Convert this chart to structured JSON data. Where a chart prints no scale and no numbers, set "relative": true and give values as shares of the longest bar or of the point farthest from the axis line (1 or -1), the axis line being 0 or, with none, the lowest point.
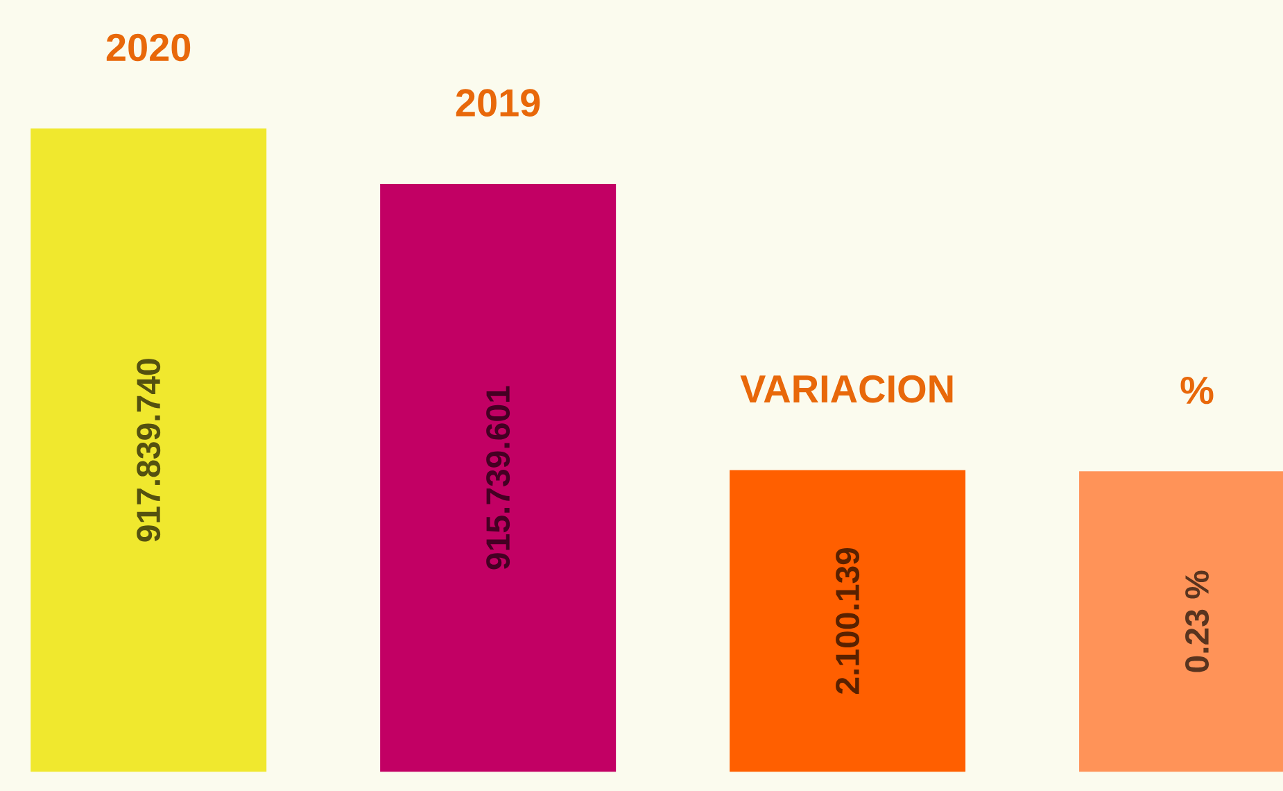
{
  "chart_data": {
    "type": "bar",
    "relative": true,
    "categories": [
      "2020",
      "2019",
      "VARIACION",
      "%"
    ],
    "values": [
      1,
      0.914,
      0.469,
      0.467
    ],
    "colors": [
      "#f0e82e",
      "#c20064",
      "#ff5f00",
      "#ff9358"
    ],
    "annotations": [
      "917.839.740",
      "915.739.601",
      "2.100.139",
      "0.23 %"
    ]
  }
}
